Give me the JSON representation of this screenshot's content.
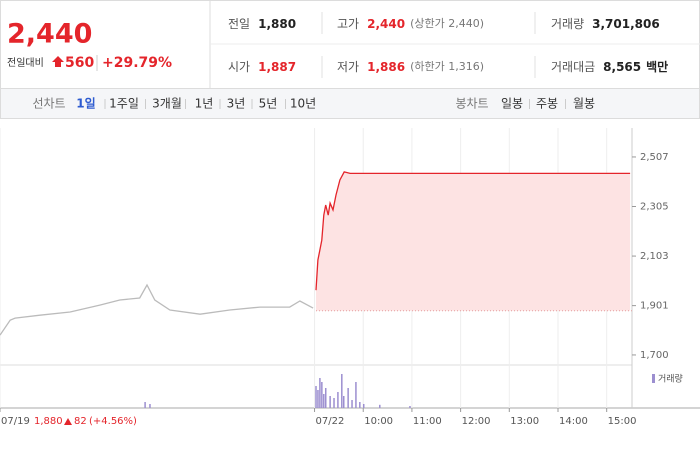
{
  "header": {
    "price": "2,440",
    "change_label": "전일대비",
    "change": "560",
    "change_rate": "+29.79%"
  },
  "stats": [
    [
      {
        "label": "전일",
        "value": "1,880",
        "color": "#222222"
      },
      {
        "label": "고가",
        "value": "2,440",
        "note": "(상한가 2,440)",
        "color": "#e4252b"
      },
      {
        "label": "거래량",
        "value": "3,701,806",
        "color": "#222222"
      }
    ],
    [
      {
        "label": "시가",
        "value": "1,887",
        "color": "#e4252b"
      },
      {
        "label": "저가",
        "value": "1,886",
        "note": "(하한가 1,316)",
        "color": "#e4252b"
      },
      {
        "label": "거래대금",
        "value": "8,565",
        "unit": "백만",
        "color": "#222222"
      }
    ]
  ],
  "tabs": {
    "line_label": "선차트",
    "line_periods": [
      "1일",
      "1주일",
      "3개월",
      "1년",
      "3년",
      "5년",
      "10년"
    ],
    "active": 0,
    "candle_label": "봉차트",
    "candle_periods": [
      "일봉",
      "주봉",
      "월봉"
    ]
  },
  "prev_day": {
    "close": "1,880",
    "change": "82",
    "change_rate": "(+4.56%)"
  },
  "chart_data": [
    {
      "type": "line",
      "xlim": [
        2.54,
        15.52
      ],
      "xticks": [
        {
          "value": 2.54,
          "label": "07/19"
        },
        {
          "value": 9,
          "label": "07/22"
        },
        {
          "value": 10,
          "label": "10:00"
        },
        {
          "value": 11,
          "label": "11:00"
        },
        {
          "value": 12,
          "label": "12:00"
        },
        {
          "value": 13,
          "label": "13:00"
        },
        {
          "value": 14,
          "label": "14:00"
        },
        {
          "value": 15,
          "label": "15:00"
        }
      ],
      "ylim": [
        1659,
        2625
      ],
      "yticks": [
        {
          "value": 2507,
          "label": "2,507"
        },
        {
          "value": 2305,
          "label": "2,305"
        },
        {
          "value": 2103,
          "label": "2,103"
        },
        {
          "value": 1901,
          "label": "1,901"
        },
        {
          "value": 1700,
          "label": "1,700"
        }
      ],
      "grid": true,
      "baseline": 1880,
      "series": [
        {
          "color": "#bbbbbb",
          "x": [
            2.54,
            2.75,
            2.85,
            3.36,
            3.98,
            4.59,
            5.0,
            5.41,
            5.56,
            5.72,
            6.03,
            6.65,
            7.26,
            7.88,
            8.49,
            8.7,
            8.97
          ],
          "values": [
            1781,
            1842,
            1850,
            1862,
            1875,
            1903,
            1924,
            1932,
            1985,
            1924,
            1883,
            1866,
            1883,
            1895,
            1895,
            1920,
            1891
          ]
        },
        {
          "color": "#e4252b",
          "fill": "#fde3e3",
          "x": [
            9.03,
            9.07,
            9.11,
            9.15,
            9.19,
            9.23,
            9.28,
            9.32,
            9.38,
            9.44,
            9.52,
            9.61,
            9.73,
            15.48
          ],
          "values": [
            1964,
            2087,
            2128,
            2168,
            2270,
            2311,
            2270,
            2319,
            2291,
            2352,
            2413,
            2446,
            2440,
            2440
          ]
        }
      ]
    },
    {
      "type": "bar",
      "xlim": [
        2.54,
        15.52
      ],
      "ylim": [
        0,
        100
      ],
      "series": [
        {
          "name": "거래량",
          "color": "#9c8fd0",
          "x": [
            5.52,
            5.62,
            9.03,
            9.07,
            9.11,
            9.15,
            9.19,
            9.23,
            9.32,
            9.4,
            9.48,
            9.56,
            9.6,
            9.69,
            9.77,
            9.85,
            9.93,
            10.01,
            10.34,
            10.96
          ],
          "values": [
            15,
            10,
            55,
            45,
            75,
            65,
            35,
            50,
            30,
            25,
            40,
            85,
            30,
            50,
            20,
            65,
            15,
            10,
            8,
            5
          ]
        }
      ]
    }
  ]
}
